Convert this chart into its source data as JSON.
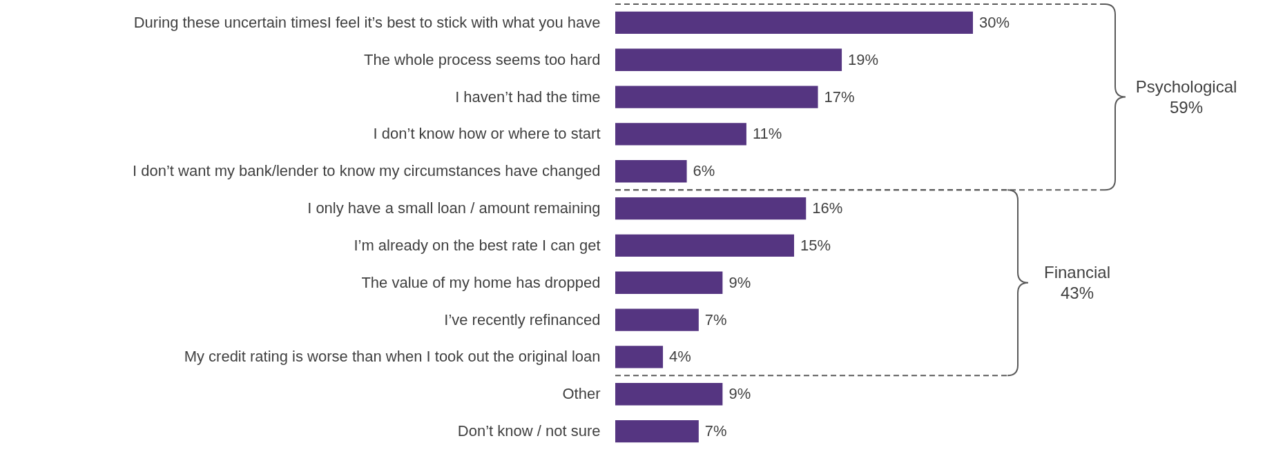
{
  "chart_data": {
    "type": "bar",
    "orientation": "horizontal",
    "data_labels": true,
    "categories": [
      "During these uncertain timesI feel it’s best to stick with what you have",
      "The whole process seems too hard",
      "I haven’t had the time",
      "I don’t know how or where to start",
      "I don’t want my bank/lender to know my circumstances have changed",
      "I only have a small loan / amount remaining",
      "I’m already on the best rate I can get",
      "The value of my home has dropped",
      "I’ve recently refinanced",
      "My credit rating is worse than when I took out the original loan",
      "Other",
      "Don’t know / not sure"
    ],
    "values": [
      30,
      19,
      17,
      11,
      6,
      16,
      15,
      9,
      7,
      4,
      9,
      7
    ],
    "value_labels": [
      "30%",
      "19%",
      "17%",
      "11%",
      "6%",
      "16%",
      "15%",
      "9%",
      "7%",
      "4%",
      "9%",
      "7%"
    ],
    "color": "#553581",
    "annotations": [
      "Psychological 59%",
      "Financial 43%"
    ]
  }
}
